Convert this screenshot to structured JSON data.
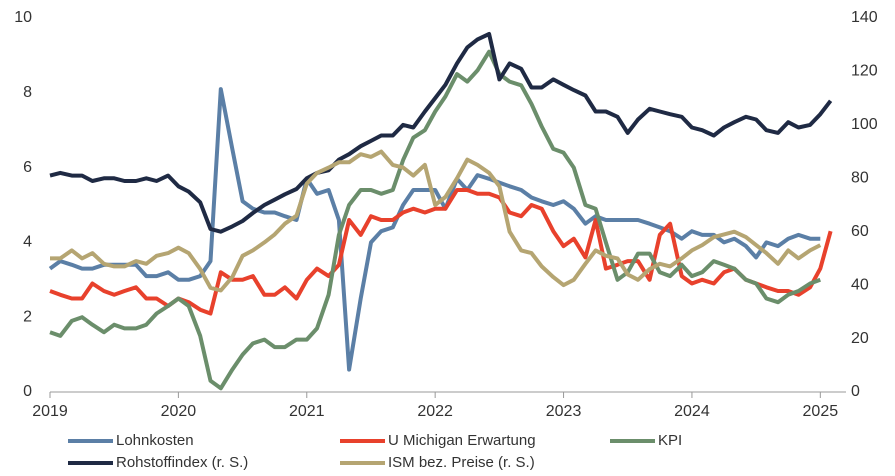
{
  "chart_data": {
    "type": "line",
    "x": [
      2019,
      2019.08,
      2019.17,
      2019.25,
      2019.33,
      2019.42,
      2019.5,
      2019.58,
      2019.67,
      2019.75,
      2019.83,
      2019.92,
      2020,
      2020.08,
      2020.17,
      2020.25,
      2020.33,
      2020.42,
      2020.5,
      2020.58,
      2020.67,
      2020.75,
      2020.83,
      2020.92,
      2021,
      2021.08,
      2021.17,
      2021.25,
      2021.33,
      2021.42,
      2021.5,
      2021.58,
      2021.67,
      2021.75,
      2021.83,
      2021.92,
      2022,
      2022.08,
      2022.17,
      2022.25,
      2022.33,
      2022.42,
      2022.5,
      2022.58,
      2022.67,
      2022.75,
      2022.83,
      2022.92,
      2023,
      2023.08,
      2023.17,
      2023.25,
      2023.33,
      2023.42,
      2023.5,
      2023.58,
      2023.67,
      2023.75,
      2023.83,
      2023.92,
      2024,
      2024.08,
      2024.17,
      2024.25,
      2024.33,
      2024.42,
      2024.5,
      2024.58,
      2024.67,
      2024.75,
      2024.83,
      2024.92,
      2025,
      2025.08
    ],
    "xlim": [
      2019,
      2025.2
    ],
    "xticks": [
      2019,
      2020,
      2021,
      2022,
      2023,
      2024,
      2025
    ],
    "ylim": [
      0,
      10
    ],
    "yticks": [
      0,
      2,
      4,
      6,
      8,
      10
    ],
    "y2lim": [
      0,
      140
    ],
    "y2ticks": [
      0,
      20,
      40,
      60,
      80,
      100,
      120,
      140
    ],
    "grid": false,
    "legend": "bottom",
    "series": [
      {
        "name": "Lohnkosten",
        "color": "#5b7fa6",
        "values": [
          3.3,
          3.5,
          3.4,
          3.3,
          3.3,
          3.4,
          3.4,
          3.4,
          3.4,
          3.1,
          3.1,
          3.2,
          3.0,
          3.0,
          3.1,
          3.5,
          8.1,
          6.5,
          5.1,
          4.9,
          4.8,
          4.8,
          4.7,
          4.6,
          5.7,
          5.3,
          5.4,
          4.6,
          0.6,
          2.5,
          4.0,
          4.3,
          4.4,
          5.0,
          5.4,
          5.4,
          5.4,
          4.9,
          5.7,
          5.4,
          5.8,
          5.7,
          5.6,
          5.5,
          5.4,
          5.2,
          5.1,
          5.0,
          5.1,
          4.9,
          4.5,
          4.7,
          4.6,
          4.6,
          4.6,
          4.6,
          4.5,
          4.4,
          4.3,
          4.1,
          4.3,
          4.2,
          4.2,
          4.0,
          4.1,
          3.9,
          3.6,
          4.0,
          3.9,
          4.1,
          4.2,
          4.1,
          4.1,
          null
        ]
      },
      {
        "name": "U Michigan Erwartung",
        "color": "#e8412c",
        "values": [
          2.7,
          2.6,
          2.5,
          2.5,
          2.9,
          2.7,
          2.6,
          2.7,
          2.8,
          2.5,
          2.5,
          2.3,
          2.5,
          2.4,
          2.2,
          2.1,
          3.2,
          3.0,
          3.0,
          3.1,
          2.6,
          2.6,
          2.8,
          2.5,
          3.0,
          3.3,
          3.1,
          3.4,
          4.6,
          4.2,
          4.7,
          4.6,
          4.6,
          4.8,
          4.9,
          4.8,
          4.9,
          4.9,
          5.4,
          5.4,
          5.3,
          5.3,
          5.2,
          4.8,
          4.7,
          5.0,
          4.9,
          4.3,
          3.9,
          4.1,
          3.6,
          4.6,
          3.3,
          3.4,
          3.5,
          3.5,
          3.0,
          4.2,
          4.5,
          3.1,
          2.9,
          3.0,
          2.9,
          3.2,
          3.3,
          3.0,
          2.9,
          2.8,
          2.7,
          2.7,
          2.6,
          2.8,
          3.3,
          4.3
        ]
      },
      {
        "name": "KPI",
        "color": "#6b8e6b",
        "values": [
          1.6,
          1.5,
          1.9,
          2.0,
          1.8,
          1.6,
          1.8,
          1.7,
          1.7,
          1.8,
          2.1,
          2.3,
          2.5,
          2.3,
          1.5,
          0.3,
          0.1,
          0.6,
          1.0,
          1.3,
          1.4,
          1.2,
          1.2,
          1.4,
          1.4,
          1.7,
          2.6,
          4.2,
          5.0,
          5.4,
          5.4,
          5.3,
          5.4,
          6.2,
          6.8,
          7.0,
          7.5,
          7.9,
          8.5,
          8.3,
          8.6,
          9.1,
          8.5,
          8.3,
          8.2,
          7.7,
          7.1,
          6.5,
          6.4,
          6.0,
          5.0,
          4.9,
          4.0,
          3.0,
          3.2,
          3.7,
          3.7,
          3.2,
          3.1,
          3.4,
          3.1,
          3.2,
          3.5,
          3.4,
          3.3,
          3.0,
          2.9,
          2.5,
          2.4,
          2.6,
          2.7,
          2.9,
          3.0,
          null
        ]
      },
      {
        "name": "Rohstoffindex (r. S.)",
        "color": "#1f2a44",
        "axis": "y2",
        "values": [
          81,
          82,
          81,
          81,
          79,
          80,
          80,
          79,
          79,
          80,
          79,
          81,
          77,
          75,
          71,
          61,
          60,
          62,
          64,
          67,
          70,
          72,
          74,
          76,
          80,
          82,
          83,
          87,
          89,
          92,
          94,
          96,
          96,
          100,
          99,
          105,
          110,
          115,
          123,
          129,
          132,
          134,
          117,
          123,
          121,
          114,
          114,
          117,
          115,
          113,
          111,
          105,
          105,
          103,
          97,
          102,
          106,
          105,
          104,
          103,
          99,
          98,
          96,
          99,
          101,
          103,
          102,
          98,
          97,
          101,
          99,
          100,
          104,
          109
        ]
      },
      {
        "name": "ISM bez. Preise (r. S.)",
        "color": "#b5a572",
        "axis": "y2",
        "values": [
          50,
          50,
          53,
          50,
          52,
          48,
          47,
          47,
          49,
          48,
          51,
          52,
          54,
          52,
          46,
          39,
          38,
          43,
          51,
          53,
          56,
          59,
          63,
          66,
          78,
          82,
          84,
          86,
          86,
          89,
          88,
          90,
          85,
          84,
          81,
          85,
          70,
          73,
          80,
          87,
          85,
          82,
          77,
          60,
          53,
          52,
          47,
          43,
          40,
          42,
          48,
          53,
          51,
          50,
          44,
          42,
          46,
          48,
          47,
          50,
          53,
          55,
          58,
          59,
          60,
          58,
          55,
          52,
          48,
          53,
          50,
          53,
          55,
          null
        ]
      }
    ]
  }
}
